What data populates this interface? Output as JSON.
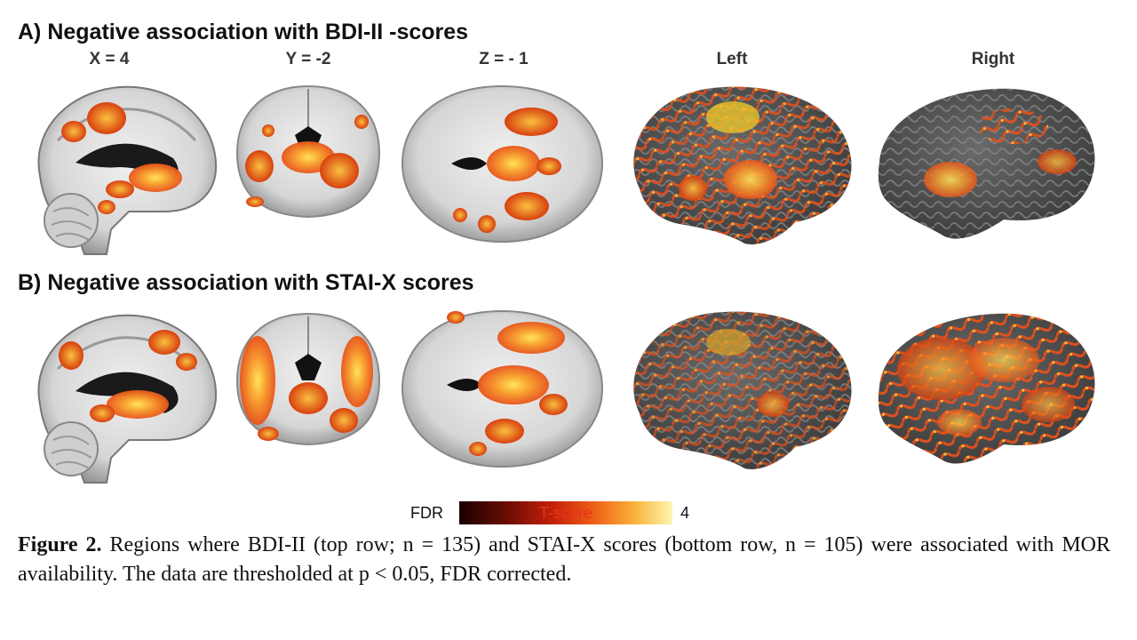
{
  "panel_a": {
    "title": "A) Negative association with BDI-II -scores"
  },
  "panel_b": {
    "title": "B) Negative association with STAI-X scores"
  },
  "column_labels": [
    "X = 4",
    "Y = -2",
    "Z = - 1",
    "Left",
    "Right"
  ],
  "colorbar": {
    "min_label": "FDR",
    "title": "T-score",
    "max_label": "4"
  },
  "caption": {
    "label": "Figure 2.",
    "text": " Regions where BDI-II (top row; n = 135) and STAI-X scores (bottom row, n = 105) were associated with MOR availability. The data are thresholded at p < 0.05, FDR corrected."
  },
  "colors": {
    "hot_dark": "#c8230a",
    "hot_mid": "#f0661a",
    "hot_bright": "#ffd84a",
    "cortex": "#555555"
  }
}
